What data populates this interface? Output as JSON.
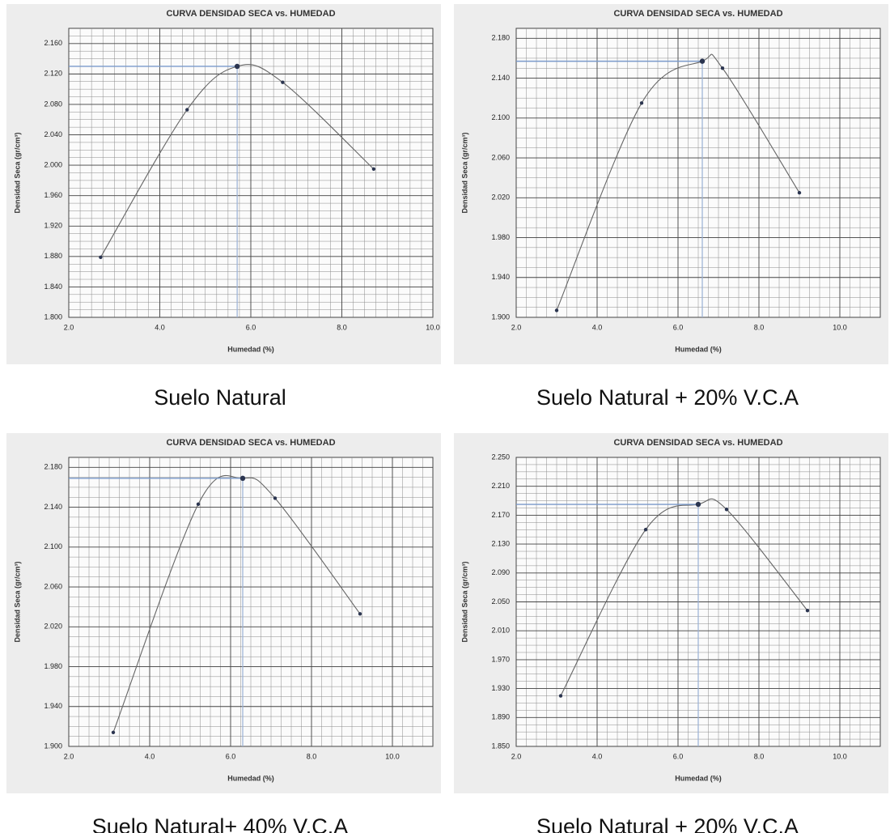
{
  "chart_data": [
    {
      "type": "scatter",
      "title": "CURVA DENSIDAD SECA vs. HUMEDAD",
      "x_label": "Humedad (%)",
      "y_label": "Densidad Seca (gr/cm³)",
      "caption": "Suelo Natural",
      "x": [
        2.7,
        4.6,
        5.7,
        6.7,
        8.7
      ],
      "values": [
        1.879,
        2.073,
        2.13,
        2.109,
        1.995
      ],
      "color": "#2b3550",
      "xlim": [
        2,
        10
      ],
      "ylim": [
        1.8,
        2.18
      ],
      "xticks": [
        {
          "value": 2,
          "label": "2.0"
        },
        {
          "value": 4,
          "label": "4.0"
        },
        {
          "value": 6,
          "label": "6.0"
        },
        {
          "value": 8,
          "label": "8.0"
        },
        {
          "value": 10,
          "label": "10.0"
        }
      ],
      "yticks": [
        {
          "value": 1.8,
          "label": "1.800"
        },
        {
          "value": 1.84,
          "label": "1.840"
        },
        {
          "value": 1.88,
          "label": "1.880"
        },
        {
          "value": 1.92,
          "label": "1.920"
        },
        {
          "value": 1.96,
          "label": "1.960"
        },
        {
          "value": 2.0,
          "label": "2.000"
        },
        {
          "value": 2.04,
          "label": "2.040"
        },
        {
          "value": 2.08,
          "label": "2.080"
        },
        {
          "value": 2.12,
          "label": "2.120"
        },
        {
          "value": 2.16,
          "label": "2.160"
        }
      ],
      "grid": true
    },
    {
      "type": "scatter",
      "title": "CURVA DENSIDAD SECA vs. HUMEDAD",
      "x_label": "Humedad (%)",
      "y_label": "Densidad Seca (gr/cm³)",
      "caption": "Suelo Natural + 20% V.C.A",
      "x": [
        3.0,
        5.1,
        6.6,
        7.1,
        9.0
      ],
      "values": [
        1.907,
        2.115,
        2.157,
        2.15,
        2.025
      ],
      "color": "#2b3550",
      "xlim": [
        2,
        11
      ],
      "ylim": [
        1.9,
        2.19
      ],
      "xticks": [
        {
          "value": 2,
          "label": "2.0"
        },
        {
          "value": 4,
          "label": "4.0"
        },
        {
          "value": 6,
          "label": "6.0"
        },
        {
          "value": 8,
          "label": "8.0"
        },
        {
          "value": 10,
          "label": "10.0"
        }
      ],
      "yticks": [
        {
          "value": 1.9,
          "label": "1.900"
        },
        {
          "value": 1.94,
          "label": "1.940"
        },
        {
          "value": 1.98,
          "label": "1.980"
        },
        {
          "value": 2.02,
          "label": "2.020"
        },
        {
          "value": 2.06,
          "label": "2.060"
        },
        {
          "value": 2.1,
          "label": "2.100"
        },
        {
          "value": 2.14,
          "label": "2.140"
        },
        {
          "value": 2.18,
          "label": "2.180"
        }
      ],
      "grid": true
    },
    {
      "type": "scatter",
      "title": "CURVA DENSIDAD SECA vs. HUMEDAD",
      "x_label": "Humedad (%)",
      "y_label": "Densidad Seca (gr/cm³)",
      "caption": "Suelo Natural+ 40% V.C.A",
      "x": [
        3.1,
        5.2,
        6.3,
        7.1,
        9.2
      ],
      "values": [
        1.914,
        2.143,
        2.169,
        2.149,
        2.033
      ],
      "color": "#2b3550",
      "xlim": [
        2,
        11
      ],
      "ylim": [
        1.9,
        2.19
      ],
      "xticks": [
        {
          "value": 2,
          "label": "2.0"
        },
        {
          "value": 4,
          "label": "4.0"
        },
        {
          "value": 6,
          "label": "6.0"
        },
        {
          "value": 8,
          "label": "8.0"
        },
        {
          "value": 10,
          "label": "10.0"
        }
      ],
      "yticks": [
        {
          "value": 1.9,
          "label": "1.900"
        },
        {
          "value": 1.94,
          "label": "1.940"
        },
        {
          "value": 1.98,
          "label": "1.980"
        },
        {
          "value": 2.02,
          "label": "2.020"
        },
        {
          "value": 2.06,
          "label": "2.060"
        },
        {
          "value": 2.1,
          "label": "2.100"
        },
        {
          "value": 2.14,
          "label": "2.140"
        },
        {
          "value": 2.18,
          "label": "2.180"
        }
      ],
      "grid": true
    },
    {
      "type": "scatter",
      "title": "CURVA DENSIDAD SECA vs. HUMEDAD",
      "x_label": "Humedad (%)",
      "y_label": "Densidad Seca (gr/cm³)",
      "caption": "Suelo Natural + 20% V.C.A",
      "x": [
        3.1,
        5.2,
        6.5,
        7.2,
        9.2
      ],
      "values": [
        1.92,
        2.15,
        2.185,
        2.178,
        2.038
      ],
      "color": "#2b3550",
      "xlim": [
        2,
        11
      ],
      "ylim": [
        1.85,
        2.25
      ],
      "xticks": [
        {
          "value": 2,
          "label": "2.0"
        },
        {
          "value": 4,
          "label": "4.0"
        },
        {
          "value": 6,
          "label": "6.0"
        },
        {
          "value": 8,
          "label": "8.0"
        },
        {
          "value": 10,
          "label": "10.0"
        }
      ],
      "yticks": [
        {
          "value": 1.85,
          "label": "1.850"
        },
        {
          "value": 1.89,
          "label": "1.890"
        },
        {
          "value": 1.93,
          "label": "1.930"
        },
        {
          "value": 1.97,
          "label": "1.970"
        },
        {
          "value": 2.01,
          "label": "2.010"
        },
        {
          "value": 2.05,
          "label": "2.050"
        },
        {
          "value": 2.09,
          "label": "2.090"
        },
        {
          "value": 2.13,
          "label": "2.130"
        },
        {
          "value": 2.17,
          "label": "2.170"
        },
        {
          "value": 2.21,
          "label": "2.210"
        },
        {
          "value": 2.25,
          "label": "2.250"
        }
      ],
      "grid": true
    }
  ]
}
